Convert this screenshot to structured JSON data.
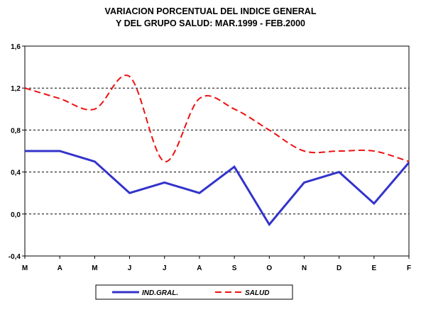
{
  "chart_data": {
    "type": "line",
    "title_line1": "VARIACION PORCENTUAL DEL INDICE GENERAL",
    "title_line2": "Y DEL GRUPO SALUD: MAR.1999 - FEB.2000",
    "categories": [
      "M",
      "A",
      "M",
      "J",
      "J",
      "A",
      "S",
      "O",
      "N",
      "D",
      "E",
      "F"
    ],
    "ylim": [
      -0.4,
      1.6
    ],
    "yticks": [
      -0.4,
      0.0,
      0.4,
      0.8,
      1.2,
      1.6
    ],
    "ytick_labels": [
      "-0,4",
      "0,0",
      "0,4",
      "0,8",
      "1,2",
      "1,6"
    ],
    "grid": "horizontal dashed at 0,0 0,4 0,8 1,2",
    "legend_position": "bottom",
    "series": [
      {
        "name": "IND.GRAL.",
        "color": "#3333cc",
        "style": "solid",
        "values": [
          0.6,
          0.6,
          0.5,
          0.2,
          0.3,
          0.2,
          0.45,
          -0.1,
          0.3,
          0.4,
          0.1,
          0.49
        ]
      },
      {
        "name": "SALUD",
        "color": "#ee1111",
        "style": "dashed",
        "values": [
          1.2,
          1.1,
          1.0,
          1.31,
          0.5,
          1.1,
          1.0,
          0.8,
          0.6,
          0.6,
          0.6,
          0.5
        ]
      }
    ]
  }
}
